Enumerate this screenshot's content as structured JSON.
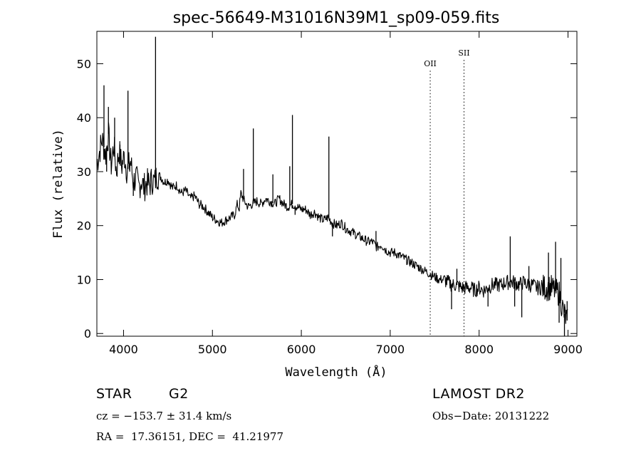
{
  "chart_data": {
    "type": "line",
    "title": "spec-56649-M31016N39M1_sp09-059.fits",
    "xlabel": "Wavelength (Å)",
    "ylabel": "Flux (relative)",
    "xlim": [
      3700,
      9100
    ],
    "ylim": [
      -0.5,
      56
    ],
    "x_ticks": [
      4000,
      5000,
      6000,
      7000,
      8000,
      9000
    ],
    "y_ticks": [
      0,
      10,
      20,
      30,
      40,
      50
    ],
    "grid": false,
    "legend": "none",
    "line_color": "#000000",
    "series_points": [
      [
        3700,
        31.5
      ],
      [
        3760,
        36
      ],
      [
        3800,
        33
      ],
      [
        3830,
        37
      ],
      [
        3860,
        31
      ],
      [
        3890,
        35
      ],
      [
        3920,
        30
      ],
      [
        3950,
        34
      ],
      [
        3980,
        31
      ],
      [
        4010,
        33
      ],
      [
        4040,
        30
      ],
      [
        4080,
        32
      ],
      [
        4110,
        28
      ],
      [
        4140,
        29
      ],
      [
        4170,
        27
      ],
      [
        4200,
        28.5
      ],
      [
        4230,
        27
      ],
      [
        4260,
        28
      ],
      [
        4290,
        27.5
      ],
      [
        4320,
        28.5
      ],
      [
        4350,
        28
      ],
      [
        4380,
        29.5
      ],
      [
        4420,
        29
      ],
      [
        4460,
        28
      ],
      [
        4500,
        28.5
      ],
      [
        4550,
        27
      ],
      [
        4600,
        27.5
      ],
      [
        4650,
        26
      ],
      [
        4700,
        26.5
      ],
      [
        4750,
        25
      ],
      [
        4800,
        25.5
      ],
      [
        4850,
        24
      ],
      [
        4900,
        23.5
      ],
      [
        4950,
        22.5
      ],
      [
        5000,
        21.5
      ],
      [
        5050,
        21
      ],
      [
        5100,
        20.5
      ],
      [
        5150,
        21
      ],
      [
        5200,
        21.5
      ],
      [
        5250,
        22
      ],
      [
        5280,
        24
      ],
      [
        5300,
        23
      ],
      [
        5320,
        26
      ],
      [
        5360,
        24.5
      ],
      [
        5400,
        23.5
      ],
      [
        5450,
        24
      ],
      [
        5500,
        24.5
      ],
      [
        5550,
        24
      ],
      [
        5600,
        25
      ],
      [
        5650,
        24.5
      ],
      [
        5700,
        24
      ],
      [
        5750,
        25
      ],
      [
        5800,
        24
      ],
      [
        5850,
        23.5
      ],
      [
        5900,
        24
      ],
      [
        5950,
        23.5
      ],
      [
        6000,
        23
      ],
      [
        6050,
        23
      ],
      [
        6100,
        22
      ],
      [
        6150,
        22.5
      ],
      [
        6200,
        21.5
      ],
      [
        6250,
        21
      ],
      [
        6300,
        21.5
      ],
      [
        6350,
        20.5
      ],
      [
        6400,
        20
      ],
      [
        6450,
        20.5
      ],
      [
        6500,
        19.5
      ],
      [
        6550,
        19
      ],
      [
        6600,
        18.5
      ],
      [
        6650,
        18
      ],
      [
        6700,
        17.5
      ],
      [
        6750,
        17
      ],
      [
        6800,
        17
      ],
      [
        6850,
        16
      ],
      [
        6900,
        16.5
      ],
      [
        6950,
        15.5
      ],
      [
        7000,
        15
      ],
      [
        7050,
        15
      ],
      [
        7100,
        14.5
      ],
      [
        7150,
        14
      ],
      [
        7200,
        13.5
      ],
      [
        7250,
        13
      ],
      [
        7300,
        12.5
      ],
      [
        7350,
        12
      ],
      [
        7400,
        11.5
      ],
      [
        7450,
        11
      ],
      [
        7500,
        10.5
      ],
      [
        7550,
        10
      ],
      [
        7600,
        10
      ],
      [
        7650,
        9.5
      ],
      [
        7700,
        9
      ],
      [
        7750,
        9
      ],
      [
        7800,
        8.5
      ],
      [
        7850,
        8.5
      ],
      [
        7900,
        8.5
      ],
      [
        7950,
        8
      ],
      [
        8000,
        8.5
      ],
      [
        8050,
        8
      ],
      [
        8100,
        8.5
      ],
      [
        8150,
        9
      ],
      [
        8200,
        9
      ],
      [
        8250,
        9
      ],
      [
        8300,
        9.5
      ],
      [
        8350,
        9.5
      ],
      [
        8400,
        9.5
      ],
      [
        8450,
        9
      ],
      [
        8500,
        9.5
      ],
      [
        8550,
        9
      ],
      [
        8600,
        9
      ],
      [
        8650,
        8.5
      ],
      [
        8700,
        8.5
      ],
      [
        8750,
        8.5
      ],
      [
        8800,
        8.5
      ],
      [
        8850,
        8
      ],
      [
        8900,
        7.5
      ],
      [
        8950,
        4
      ],
      [
        9000,
        2
      ]
    ],
    "spikes": [
      {
        "x": 3780,
        "y": 46
      },
      {
        "x": 3810,
        "y": 30
      },
      {
        "x": 3830,
        "y": 42
      },
      {
        "x": 3900,
        "y": 40
      },
      {
        "x": 3960,
        "y": 35
      },
      {
        "x": 4050,
        "y": 45
      },
      {
        "x": 4070,
        "y": 30
      },
      {
        "x": 4110,
        "y": 25.5
      },
      {
        "x": 4360,
        "y": 55
      },
      {
        "x": 5350,
        "y": 30.5
      },
      {
        "x": 5460,
        "y": 38
      },
      {
        "x": 5680,
        "y": 29.5
      },
      {
        "x": 5870,
        "y": 31
      },
      {
        "x": 5900,
        "y": 40.5
      },
      {
        "x": 5930,
        "y": 22
      },
      {
        "x": 6310,
        "y": 36.5
      },
      {
        "x": 6350,
        "y": 18
      },
      {
        "x": 6840,
        "y": 19
      },
      {
        "x": 7690,
        "y": 4.5
      },
      {
        "x": 7750,
        "y": 12
      },
      {
        "x": 8100,
        "y": 5
      },
      {
        "x": 8350,
        "y": 18
      },
      {
        "x": 8400,
        "y": 5
      },
      {
        "x": 8480,
        "y": 3
      },
      {
        "x": 8560,
        "y": 12.5
      },
      {
        "x": 8780,
        "y": 15
      },
      {
        "x": 8860,
        "y": 17
      },
      {
        "x": 8900,
        "y": 2
      },
      {
        "x": 8920,
        "y": 14
      },
      {
        "x": 8960,
        "y": -0.5
      },
      {
        "x": 8990,
        "y": 6
      }
    ],
    "annotations": [
      {
        "label": "OII",
        "x": 7450,
        "label_y": 49.5
      },
      {
        "label": "SII",
        "x": 7830,
        "label_y": 51.5
      }
    ]
  },
  "info": {
    "object_class": "STAR",
    "subclass": "G2",
    "survey": "LAMOST DR2",
    "cz": "cz = −153.7 ± 31.4 km/s",
    "obs_date": "Obs−Date: 20131222",
    "coords": "RA =  17.36151, DEC =  41.21977"
  }
}
